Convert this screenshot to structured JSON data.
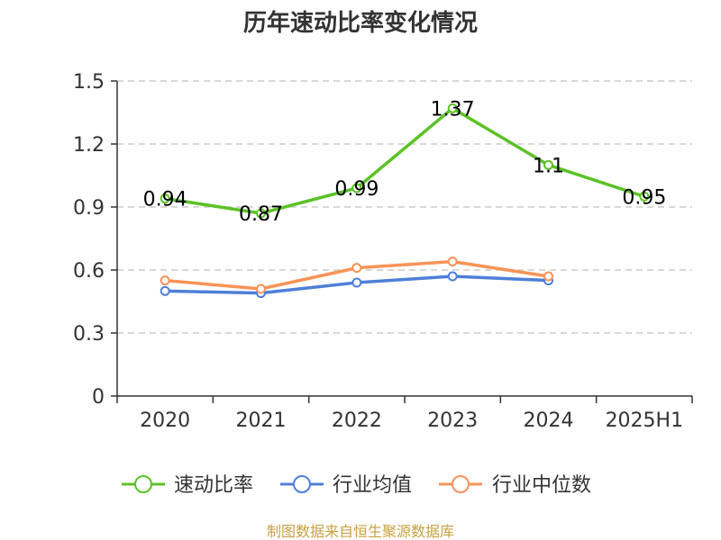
{
  "chart_data": {
    "type": "line",
    "title": "历年速动比率变化情况",
    "categories": [
      "2020",
      "2021",
      "2022",
      "2023",
      "2024",
      "2025H1"
    ],
    "ylim": [
      0,
      1.5
    ],
    "yticks": [
      "0",
      "0.3",
      "0.6",
      "0.9",
      "1.2",
      "1.5"
    ],
    "grid": true,
    "legend_position": "bottom",
    "series": [
      {
        "name": "速动比率",
        "color": "#5cc227",
        "values": [
          0.94,
          0.87,
          0.99,
          1.37,
          1.1,
          0.95
        ],
        "labels": [
          "0.94",
          "0.87",
          "0.99",
          "1.37",
          "1.1",
          "0.95"
        ]
      },
      {
        "name": "行业均值",
        "color": "#4f7fd8",
        "values": [
          0.5,
          0.49,
          0.54,
          0.57,
          0.55,
          null
        ]
      },
      {
        "name": "行业中位数",
        "color": "#f79358",
        "values": [
          0.55,
          0.51,
          0.61,
          0.64,
          0.57,
          null
        ]
      }
    ]
  },
  "source": "制图数据来自恒生聚源数据库"
}
